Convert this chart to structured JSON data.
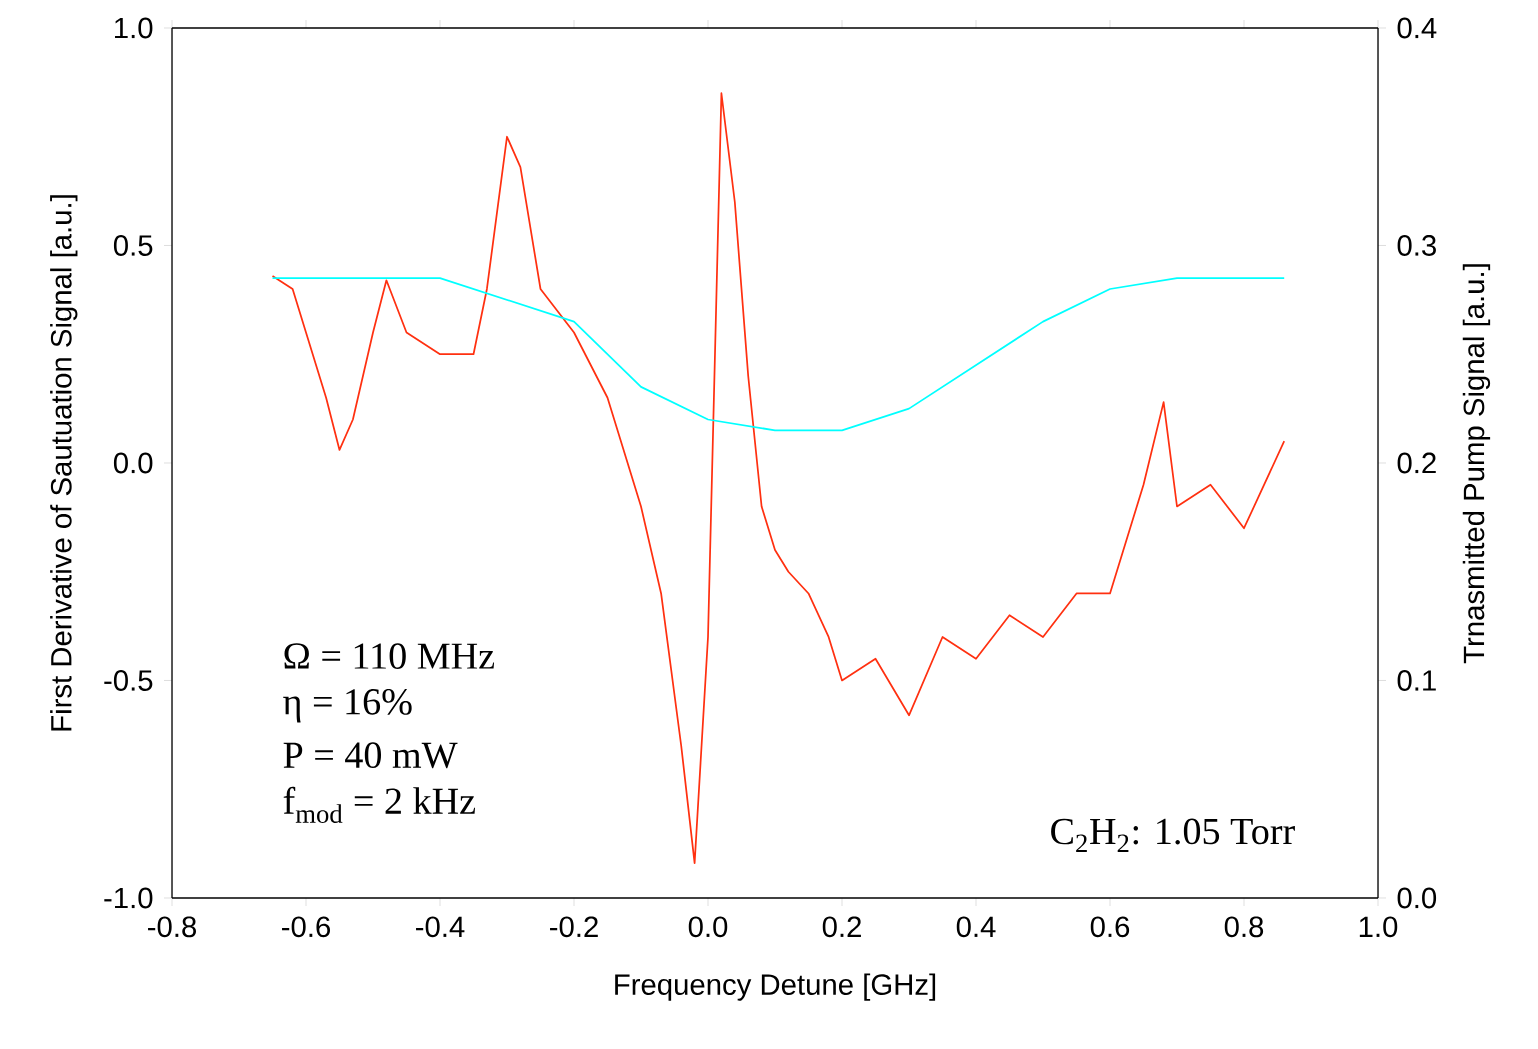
{
  "chart_data": {
    "type": "line",
    "xlabel": "Frequency Detune [GHz]",
    "ylabel": "First Derivative of Sautuation Signal [a.u.]",
    "y2label": "Trnasmitted Pump Signal [a.u.]",
    "xlim": [
      -0.8,
      1.0
    ],
    "xticks": [
      {
        "value": -0.8,
        "label": "-0.8"
      },
      {
        "value": -0.6,
        "label": "-0.6"
      },
      {
        "value": -0.4,
        "label": "-0.4"
      },
      {
        "value": -0.2,
        "label": "-0.2"
      },
      {
        "value": 0,
        "label": "0.0"
      },
      {
        "value": 0.2,
        "label": "0.2"
      },
      {
        "value": 0.4,
        "label": "0.4"
      },
      {
        "value": 0.6,
        "label": "0.6"
      },
      {
        "value": 0.8,
        "label": "0.8"
      },
      {
        "value": 1,
        "label": "1.0"
      }
    ],
    "ylim": [
      -1.0,
      1.0
    ],
    "yticks": [
      {
        "value": -1,
        "label": "-1.0"
      },
      {
        "value": -0.5,
        "label": "-0.5"
      },
      {
        "value": 0,
        "label": "0.0"
      },
      {
        "value": 0.5,
        "label": "0.5"
      },
      {
        "value": 1,
        "label": "1.0"
      }
    ],
    "y2lim": [
      0.0,
      0.4
    ],
    "y2ticks": [
      {
        "value": 0,
        "label": "0.0"
      },
      0.1,
      0.2,
      0.3,
      0.4
    ],
    "grid": false,
    "marker": "none",
    "line_style": "solid",
    "series": [
      {
        "color": "#ff3010",
        "x": [
          -0.65,
          -0.62,
          -0.6,
          -0.57,
          -0.55,
          -0.53,
          -0.5,
          -0.48,
          -0.45,
          -0.4,
          -0.35,
          -0.33,
          -0.3,
          -0.28,
          -0.25,
          -0.2,
          -0.15,
          -0.1,
          -0.07,
          -0.04,
          -0.02,
          0.0,
          0.02,
          0.04,
          0.06,
          0.08,
          0.1,
          0.12,
          0.15,
          0.18,
          0.2,
          0.25,
          0.3,
          0.35,
          0.4,
          0.45,
          0.5,
          0.55,
          0.6,
          0.65,
          0.68,
          0.7,
          0.75,
          0.8,
          0.86
        ],
        "values": [
          0.43,
          0.4,
          0.3,
          0.15,
          0.03,
          0.1,
          0.3,
          0.42,
          0.3,
          0.25,
          0.25,
          0.4,
          0.75,
          0.68,
          0.4,
          0.3,
          0.15,
          -0.1,
          -0.3,
          -0.65,
          -0.92,
          -0.4,
          0.85,
          0.6,
          0.2,
          -0.1,
          -0.2,
          -0.25,
          -0.3,
          -0.4,
          -0.5,
          -0.45,
          -0.58,
          -0.4,
          -0.45,
          -0.35,
          -0.4,
          -0.3,
          -0.3,
          -0.05,
          0.14,
          -0.1,
          -0.05,
          -0.15,
          0.05
        ]
      },
      {
        "color": "#00ffff",
        "axis": "y2",
        "x": [
          -0.65,
          -0.4,
          -0.2,
          -0.1,
          0.0,
          0.1,
          0.2,
          0.3,
          0.4,
          0.5,
          0.6,
          0.7,
          0.86
        ],
        "values": [
          0.285,
          0.285,
          0.265,
          0.235,
          0.22,
          0.215,
          0.215,
          0.225,
          0.245,
          0.265,
          0.28,
          0.285,
          0.285
        ]
      }
    ],
    "annotations": [
      "Ω = 110 MHz",
      "η = 16%",
      "P = 40 mW",
      "f$_{mod}$ = 2 kHz",
      "C$_{2}$H$_{2}$: 1.05 Torr"
    ]
  }
}
